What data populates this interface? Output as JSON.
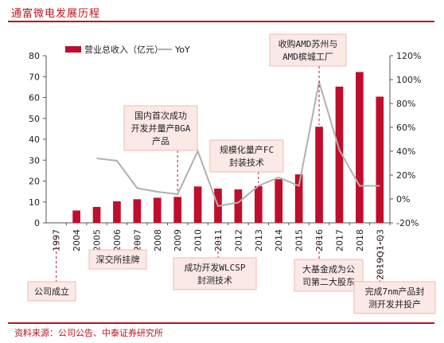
{
  "header": {
    "title": "通富微电发展历程",
    "source": "资料来源：公司公告、中泰证券研究所"
  },
  "colors": {
    "accent": "#b9141e",
    "bar": "#c00d2c",
    "line": "#b0b0b0",
    "annotation_fill": "#fbe9e6"
  },
  "chart_data": {
    "type": "bar",
    "categories": [
      "1997",
      "2004",
      "2005",
      "2006",
      "2007",
      "2008",
      "2009",
      "2010",
      "2011",
      "2012",
      "2013",
      "2014",
      "2015",
      "2016",
      "2017",
      "2018",
      "2019Q1-Q3"
    ],
    "series": [
      {
        "name": "营业总收入（亿元）",
        "type": "bar",
        "axis": "left",
        "values": [
          null,
          5.9,
          7.6,
          10.3,
          11.3,
          12.0,
          12.4,
          17.4,
          16.4,
          16.0,
          17.6,
          20.9,
          23.2,
          46.0,
          65.2,
          72.2,
          60.4
        ]
      },
      {
        "name": "YoY",
        "type": "line",
        "axis": "right",
        "values": [
          null,
          null,
          0.34,
          0.32,
          0.09,
          0.06,
          0.04,
          0.4,
          -0.06,
          -0.03,
          0.11,
          0.18,
          0.11,
          0.98,
          0.41,
          0.11,
          0.11
        ]
      }
    ],
    "y_left": {
      "min": 0,
      "max": 80,
      "ticks": [
        "0",
        "10",
        "20",
        "30",
        "40",
        "50",
        "60",
        "70",
        "80"
      ]
    },
    "y_right": {
      "min": -0.2,
      "max": 1.2,
      "ticks": [
        "-20%",
        "0%",
        "20%",
        "40%",
        "60%",
        "80%",
        "100%",
        "120%"
      ]
    },
    "legend": {
      "position": "top-left"
    },
    "grid": false,
    "annotations": [
      {
        "category": "1997",
        "lines": [
          "公司成立"
        ]
      },
      {
        "category": "2007",
        "lines": [
          "深交所挂牌"
        ]
      },
      {
        "category": "2009",
        "lines": [
          "国内首次成功",
          "开发并量产BGA",
          "产品"
        ]
      },
      {
        "category": "2011",
        "lines": [
          "成功开发WLCSP",
          "封测技术"
        ]
      },
      {
        "category": "2013",
        "lines": [
          "规模化量产FC",
          "封装技术"
        ]
      },
      {
        "category": "2016",
        "lines": [
          "收购AMD苏州与",
          "AMD槟城工厂"
        ]
      },
      {
        "category": "2016",
        "lines": [
          "大基金成为公",
          "司第二大股东"
        ]
      },
      {
        "category": "2019Q1-Q3",
        "lines": [
          "完成7nm产品封",
          "测开发并投产"
        ]
      }
    ]
  }
}
